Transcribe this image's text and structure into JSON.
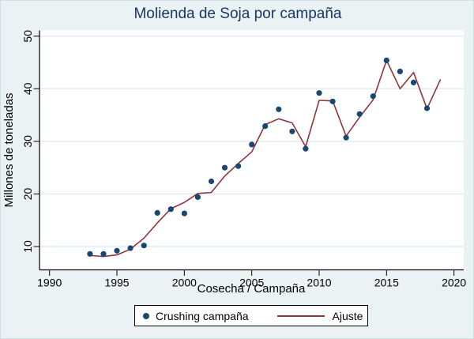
{
  "window": {
    "background_color": "#eaf2f3",
    "plot_background_color": "#ffffff",
    "gridline_color": "#e1ebee",
    "title_color": "#1b3565"
  },
  "chart_data": {
    "type": "scatter",
    "title": "Molienda de Soja por campaña",
    "xlabel": "Cosecha / Campaña",
    "ylabel": "Millones de toneladas",
    "x_ticks": [
      1990,
      1995,
      2000,
      2005,
      2010,
      2015,
      2020
    ],
    "y_ticks": [
      10,
      20,
      30,
      40,
      50
    ],
    "xlim": [
      1989.3,
      2020.7
    ],
    "ylim": [
      5.6,
      51.1
    ],
    "grid": "horizontal-only",
    "legend_position": "bottom",
    "series": [
      {
        "name": "Crushing campaña",
        "type": "scatter",
        "color": "#1a476f",
        "x": [
          1993,
          1994,
          1995,
          1996,
          1997,
          1998,
          1999,
          2000,
          2001,
          2002,
          2003,
          2004,
          2005,
          2006,
          2007,
          2008,
          2009,
          2010,
          2011,
          2012,
          2013,
          2014,
          2015,
          2016,
          2017,
          2018
        ],
        "y": [
          8.6,
          8.6,
          9.2,
          9.7,
          10.2,
          16.4,
          17.1,
          16.3,
          19.4,
          22.4,
          25.0,
          25.3,
          29.4,
          32.9,
          36.1,
          31.9,
          28.6,
          39.2,
          37.6,
          30.7,
          35.2,
          38.6,
          45.4,
          43.3,
          41.2,
          36.3
        ]
      },
      {
        "name": "Ajuste",
        "type": "line",
        "color": "#90353b",
        "x": [
          1993,
          1994,
          1995,
          1996,
          1997,
          1998,
          1999,
          2000,
          2001,
          2002,
          2003,
          2004,
          2005,
          2006,
          2007,
          2008,
          2009,
          2010,
          2011,
          2012,
          2013,
          2014,
          2015,
          2016,
          2017,
          2018,
          2019
        ],
        "y": [
          8.3,
          8.1,
          8.4,
          9.5,
          11.6,
          14.5,
          17.2,
          18.4,
          20.1,
          20.3,
          23.4,
          25.8,
          28.0,
          33.2,
          34.3,
          33.5,
          29.0,
          37.8,
          37.7,
          31.0,
          34.6,
          37.9,
          45.4,
          40.0,
          43.1,
          36.2,
          41.8
        ]
      }
    ]
  },
  "legend": {
    "items": [
      {
        "label": "Crushing campaña",
        "marker": "dot",
        "color": "#1a476f"
      },
      {
        "label": "Ajuste",
        "marker": "line",
        "color": "#90353b"
      }
    ]
  }
}
